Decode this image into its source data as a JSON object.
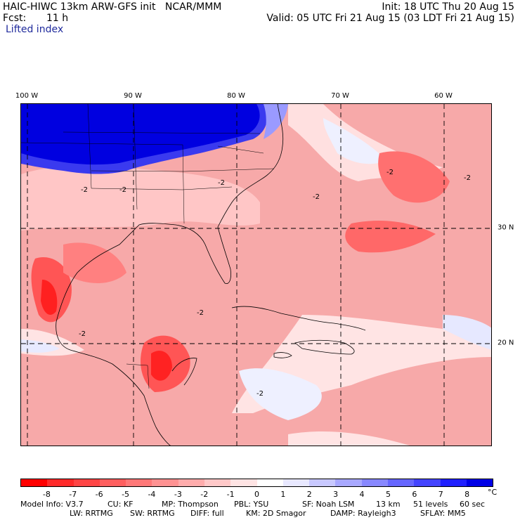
{
  "header": {
    "title": "HAIC-HIWC 13km ARW-GFS init   NCAR/MMM",
    "fcst_label": "Fcst:",
    "fcst_value": "11 h",
    "field": "Lifted index",
    "init": "Init: 18 UTC Thu 20 Aug 15",
    "valid": "Valid: 05 UTC Fri 21 Aug 15 (03 LDT Fri 21 Aug 15)"
  },
  "map": {
    "lon_labels": [
      "100 W",
      "90 W",
      "80 W",
      "70 W",
      "60 W"
    ],
    "lat_labels": [
      "30 N",
      "20 N"
    ],
    "contour_labels": [
      "-2",
      "-2",
      "-2",
      "-2",
      "-2",
      "-2",
      "-2",
      "-2",
      "-2"
    ],
    "ocean_color": "#f7a9a9",
    "stable_color": "#0000e0"
  },
  "colorbar": {
    "ticks": [
      "-8",
      "-7",
      "-6",
      "-5",
      "-4",
      "-3",
      "-2",
      "-1",
      "0",
      "1",
      "2",
      "3",
      "4",
      "5",
      "6",
      "7",
      "8"
    ],
    "unit": "°C",
    "colors": [
      "#ff0000",
      "#ff2a2a",
      "#ff4545",
      "#ff5f5f",
      "#ff7878",
      "#ff9292",
      "#ffacac",
      "#ffc8c8",
      "#ffe4e4",
      "#ffffff",
      "#e8e8ff",
      "#c8c8ff",
      "#a8a8ff",
      "#8888ff",
      "#6666ff",
      "#4444ff",
      "#2020ff",
      "#0000e6"
    ]
  },
  "footer": {
    "line1": [
      "Model Info: V3.7",
      "CU: KF",
      "MP: Thompson",
      "PBL: YSU",
      "SF: Noah LSM",
      "13 km",
      "51 levels",
      "60 sec"
    ],
    "line2": [
      "LW: RRTMG",
      "SW: RRTMG",
      "DIFF: full",
      "KM: 2D Smagor",
      "DAMP: Rayleigh3",
      "SFLAY: MM5"
    ]
  }
}
